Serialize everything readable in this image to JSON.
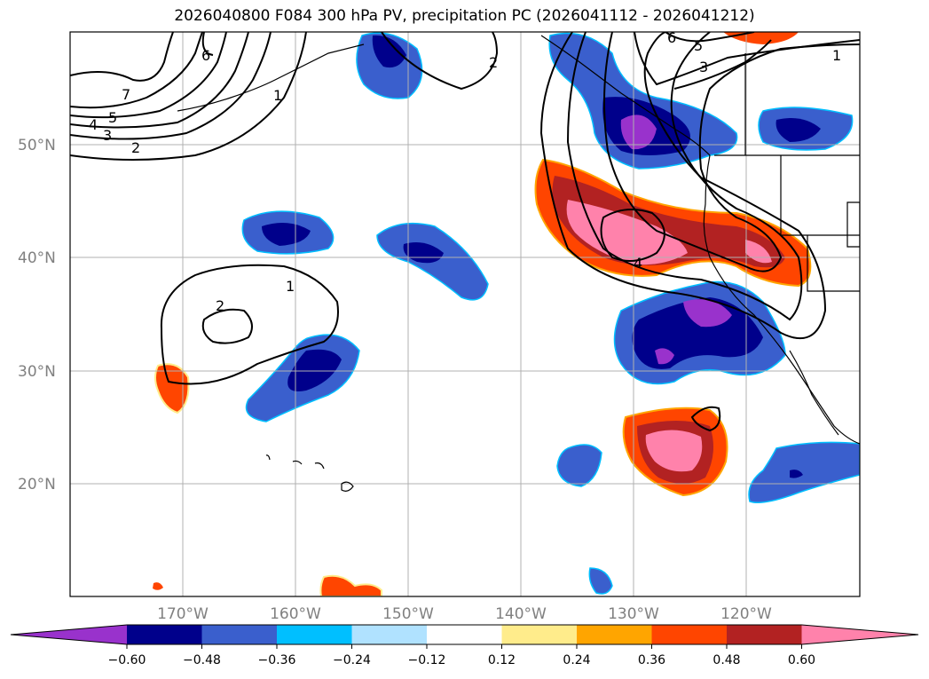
{
  "title": "2026040800 F084 300 hPa PV, precipitation PC (2026041112 - 2026041212)",
  "lat_labels": [
    "50°N",
    "40°N",
    "30°N",
    "20°N"
  ],
  "lon_labels": [
    "170°W",
    "160°W",
    "150°W",
    "140°W",
    "130°W",
    "120°W"
  ],
  "colorbar": {
    "ticks": [
      "−0.60",
      "−0.48",
      "−0.36",
      "−0.24",
      "−0.12",
      "0.12",
      "0.24",
      "0.36",
      "0.48",
      "0.60"
    ],
    "colors": [
      "#9932cc",
      "#00008b",
      "#3a5fcd",
      "#00bfff",
      "#b0e2ff",
      "#ffffff",
      "#ffec8b",
      "#ffa500",
      "#ff4500",
      "#b22222",
      "#ff82ab"
    ]
  },
  "contour_labels": [
    "7",
    "5",
    "4",
    "3",
    "2",
    "6",
    "1",
    "2",
    "6",
    "5",
    "3",
    "1",
    "4",
    "1",
    "2"
  ],
  "map": {
    "lon_range": [
      -180,
      -110
    ],
    "lat_range": [
      10,
      60
    ]
  }
}
